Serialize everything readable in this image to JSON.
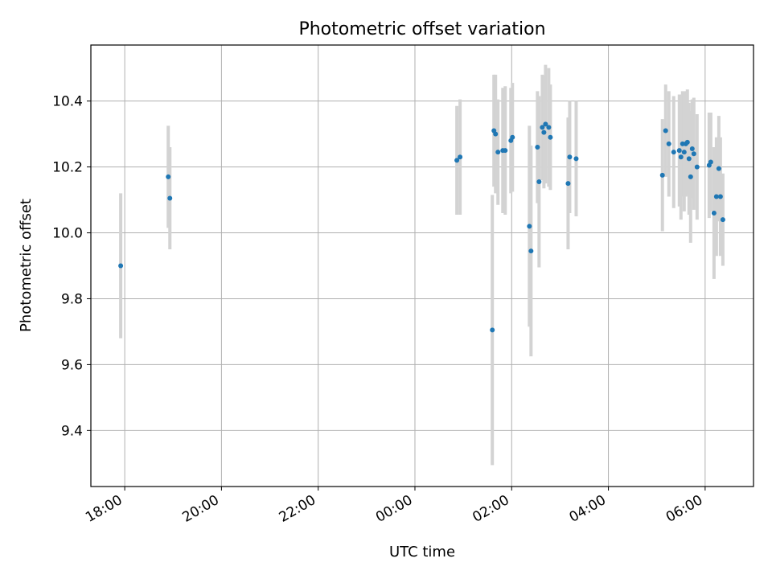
{
  "chart_data": {
    "type": "scatter",
    "title": "Photometric offset variation",
    "xlabel": "UTC time",
    "ylabel": "Photometric offset",
    "grid": true,
    "xlim": [
      "17:18",
      "07:00"
    ],
    "ylim": [
      9.23,
      10.57
    ],
    "xticks": [
      "18:00",
      "20:00",
      "22:00",
      "00:00",
      "02:00",
      "04:00",
      "06:00"
    ],
    "yticks": [
      "9.4",
      "9.6",
      "9.8",
      "10.0",
      "10.2",
      "10.4"
    ],
    "colors": {
      "marker": "#1f77b4",
      "errorbar": "#d3d3d3",
      "grid": "#b0b0b0"
    },
    "series": [
      {
        "x": [
          "17:55",
          "18:54",
          "18:56",
          "00:52",
          "00:56",
          "01:36",
          "01:38",
          "01:40",
          "01:43",
          "01:49",
          "01:52",
          "01:59",
          "02:01",
          "02:22",
          "02:24",
          "02:32",
          "02:34",
          "02:38",
          "02:40",
          "02:42",
          "02:46",
          "02:48",
          "03:10",
          "03:12",
          "03:20",
          "05:07",
          "05:11",
          "05:15",
          "05:21",
          "05:28",
          "05:30",
          "05:32",
          "05:34",
          "05:36",
          "05:38",
          "05:40",
          "05:42",
          "05:44",
          "05:46",
          "05:50",
          "06:05",
          "06:07",
          "06:11",
          "06:14",
          "06:17",
          "06:19",
          "06:22"
        ],
        "y": [
          9.9,
          10.17,
          10.105,
          10.22,
          10.23,
          9.705,
          10.31,
          10.3,
          10.245,
          10.25,
          10.25,
          10.28,
          10.29,
          10.02,
          9.945,
          10.26,
          10.155,
          10.32,
          10.305,
          10.33,
          10.32,
          10.29,
          10.15,
          10.23,
          10.225,
          10.175,
          10.31,
          10.27,
          10.245,
          10.25,
          10.23,
          10.27,
          10.245,
          10.27,
          10.275,
          10.225,
          10.17,
          10.255,
          10.24,
          10.2,
          10.205,
          10.215,
          10.06,
          10.11,
          10.195,
          10.11,
          10.04
        ],
        "err": [
          0.22,
          0.155,
          0.155,
          0.165,
          0.175,
          0.41,
          0.17,
          0.18,
          0.16,
          0.19,
          0.195,
          0.16,
          0.165,
          0.305,
          0.32,
          0.17,
          0.26,
          0.16,
          0.17,
          0.18,
          0.18,
          0.16,
          0.2,
          0.17,
          0.175,
          0.17,
          0.14,
          0.16,
          0.17,
          0.17,
          0.19,
          0.16,
          0.18,
          0.16,
          0.16,
          0.17,
          0.2,
          0.15,
          0.17,
          0.16,
          0.16,
          0.15,
          0.2,
          0.18,
          0.16,
          0.18,
          0.14
        ]
      }
    ]
  }
}
